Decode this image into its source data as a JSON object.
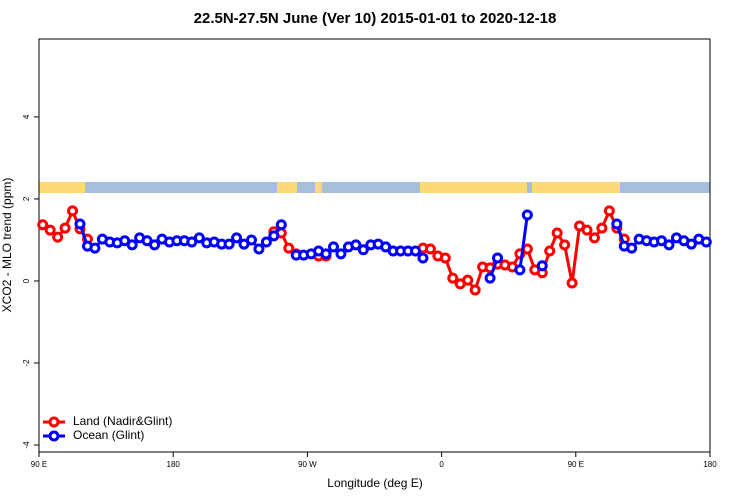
{
  "chart_data": {
    "type": "line",
    "title": "22.5N-27.5N June (Ver 10)   2015-01-01 to 2020-12-18",
    "x_label": "Longitude (deg E)",
    "y_label": "XCO2 - MLO trend (ppm)",
    "xlim": [
      90,
      540
    ],
    "xticks": [
      {
        "value": 90,
        "label": "90 E"
      },
      180,
      {
        "value": 270,
        "label": "90 W"
      },
      {
        "value": 360,
        "label": "0"
      },
      {
        "value": 450,
        "label": "90 E"
      },
      {
        "value": 540,
        "label": "180"
      }
    ],
    "ylim": [
      -4.17,
      5.9
    ],
    "yticks": [
      -4,
      -2,
      0,
      2,
      4
    ],
    "legend": "bottom-left",
    "series": [
      {
        "name": "Land (Nadir&Glint)",
        "color": "#ff0000",
        "x": [
          92.5,
          97.5,
          102.5,
          107.5,
          112.5,
          117.5,
          122.5,
          127.5,
          247.5,
          252.5,
          257.5,
          262.5,
          267.5,
          277.5,
          282.5,
          287.5,
          347.5,
          352.5,
          357.5,
          362.5,
          367.5,
          372.5,
          377.5,
          382.5,
          387.5,
          392.5,
          397.5,
          402.5,
          407.5,
          412.5,
          417.5,
          422.5,
          427.5,
          432.5,
          437.5,
          442.5,
          447.5,
          452.5,
          457.5,
          462.5,
          467.5,
          472.5,
          477.5,
          482.5
        ],
        "values": [
          1.37,
          1.24,
          1.07,
          1.29,
          1.71,
          1.27,
          1.02,
          null,
          1.2,
          1.17,
          0.8,
          0.66,
          null,
          0.61,
          0.61,
          null,
          0.8,
          0.78,
          0.61,
          0.56,
          0.07,
          -0.07,
          0.02,
          -0.22,
          0.34,
          0.32,
          0.41,
          0.39,
          0.34,
          0.66,
          0.78,
          0.27,
          0.2,
          0.73,
          1.17,
          0.88,
          -0.05,
          1.34,
          1.24,
          1.05,
          1.29,
          1.71,
          1.29,
          1.02
        ]
      },
      {
        "name": "Ocean (Glint)",
        "color": "#0000ff",
        "x": [
          117.5,
          122.5,
          127.5,
          132.5,
          137.5,
          142.5,
          147.5,
          152.5,
          157.5,
          162.5,
          167.5,
          172.5,
          177.5,
          182.5,
          187.5,
          192.5,
          197.5,
          202.5,
          207.5,
          212.5,
          217.5,
          222.5,
          227.5,
          232.5,
          237.5,
          242.5,
          247.5,
          252.5,
          257.5,
          262.5,
          267.5,
          272.5,
          277.5,
          282.5,
          287.5,
          292.5,
          297.5,
          302.5,
          307.5,
          312.5,
          317.5,
          322.5,
          327.5,
          332.5,
          337.5,
          342.5,
          347.5,
          352.5,
          392.5,
          397.5,
          402.5,
          412.5,
          417.5,
          422.5,
          427.5,
          432.5,
          477.5,
          482.5,
          487.5,
          492.5,
          497.5,
          502.5,
          507.5,
          512.5,
          517.5,
          522.5,
          527.5,
          532.5,
          537.5
        ],
        "values": [
          1.39,
          0.85,
          0.8,
          1.02,
          0.95,
          0.93,
          0.98,
          0.88,
          1.05,
          0.98,
          0.88,
          1.02,
          0.95,
          0.98,
          0.98,
          0.95,
          1.05,
          0.93,
          0.95,
          0.9,
          0.9,
          1.05,
          0.9,
          1.0,
          0.78,
          0.95,
          1.1,
          1.37,
          null,
          0.63,
          0.63,
          0.66,
          0.73,
          0.66,
          0.83,
          0.66,
          0.83,
          0.88,
          0.76,
          0.88,
          0.9,
          0.83,
          0.73,
          0.73,
          0.73,
          0.73,
          0.56,
          null,
          0.07,
          0.56,
          null,
          0.27,
          1.61,
          null,
          0.37,
          null,
          1.39,
          0.85,
          0.8,
          1.02,
          0.98,
          0.95,
          0.98,
          0.88,
          1.05,
          0.98,
          0.9,
          1.02,
          0.95
        ]
      }
    ]
  }
}
